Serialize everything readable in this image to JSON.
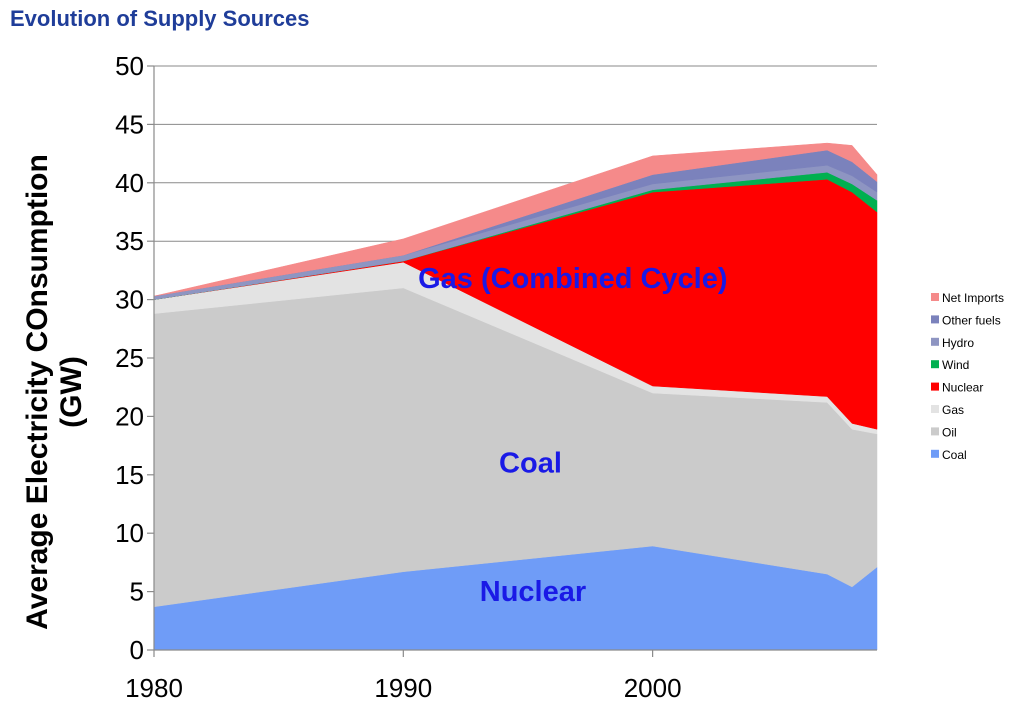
{
  "title": "Evolution of Supply Sources",
  "chart_data": {
    "type": "area",
    "stacked": true,
    "title": "Evolution of Supply Sources",
    "xlabel": "",
    "ylabel_lines": [
      "Average Electricity COnsumption",
      "(GW)"
    ],
    "xlim": [
      1980,
      2009
    ],
    "ylim": [
      0,
      50
    ],
    "yticks": [
      0,
      5,
      10,
      15,
      20,
      25,
      30,
      35,
      40,
      45,
      50
    ],
    "xticks": [
      1980,
      1990,
      2000
    ],
    "grid": "horizontal",
    "legend_position": "right",
    "x": [
      1980,
      1990,
      2000,
      2007,
      2008,
      2009
    ],
    "series": [
      {
        "name": "Coal",
        "color": "#6f9cf7",
        "values": [
          3.7,
          6.7,
          8.9,
          6.5,
          5.4,
          7.1
        ]
      },
      {
        "name": "Oil",
        "color": "#cbcbcb",
        "values": [
          25.1,
          24.3,
          13.1,
          14.7,
          13.5,
          11.4
        ]
      },
      {
        "name": "Gas",
        "color": "#e3e3e3",
        "values": [
          1.2,
          2.2,
          0.6,
          0.5,
          0.5,
          0.4
        ]
      },
      {
        "name": "Nuclear",
        "color": "#ff0000",
        "values": [
          0.0,
          0.1,
          16.6,
          18.6,
          19.8,
          18.6
        ]
      },
      {
        "name": "Wind",
        "color": "#00b050",
        "values": [
          0.0,
          0.0,
          0.2,
          0.6,
          0.7,
          1.0
        ]
      },
      {
        "name": "Hydro",
        "color": "#8e95c2",
        "values": [
          0.3,
          0.5,
          0.5,
          0.6,
          0.7,
          0.7
        ]
      },
      {
        "name": "Other fuels",
        "color": "#7b82bc",
        "values": [
          0.0,
          0.0,
          0.8,
          1.3,
          1.2,
          0.9
        ]
      },
      {
        "name": "Net Imports",
        "color": "#f58a8a",
        "values": [
          0.0,
          1.4,
          1.6,
          0.6,
          1.4,
          0.6
        ]
      }
    ],
    "annotations": [
      {
        "text": "Gas (Combined Cycle)",
        "x": 1996.8,
        "y": 31,
        "color": "#1a1ae6"
      },
      {
        "text": "Coal",
        "x": 1995.1,
        "y": 15.2,
        "color": "#1a1ae6"
      },
      {
        "text": "Nuclear",
        "x": 1995.2,
        "y": 4.2,
        "color": "#1a1ae6"
      }
    ]
  }
}
